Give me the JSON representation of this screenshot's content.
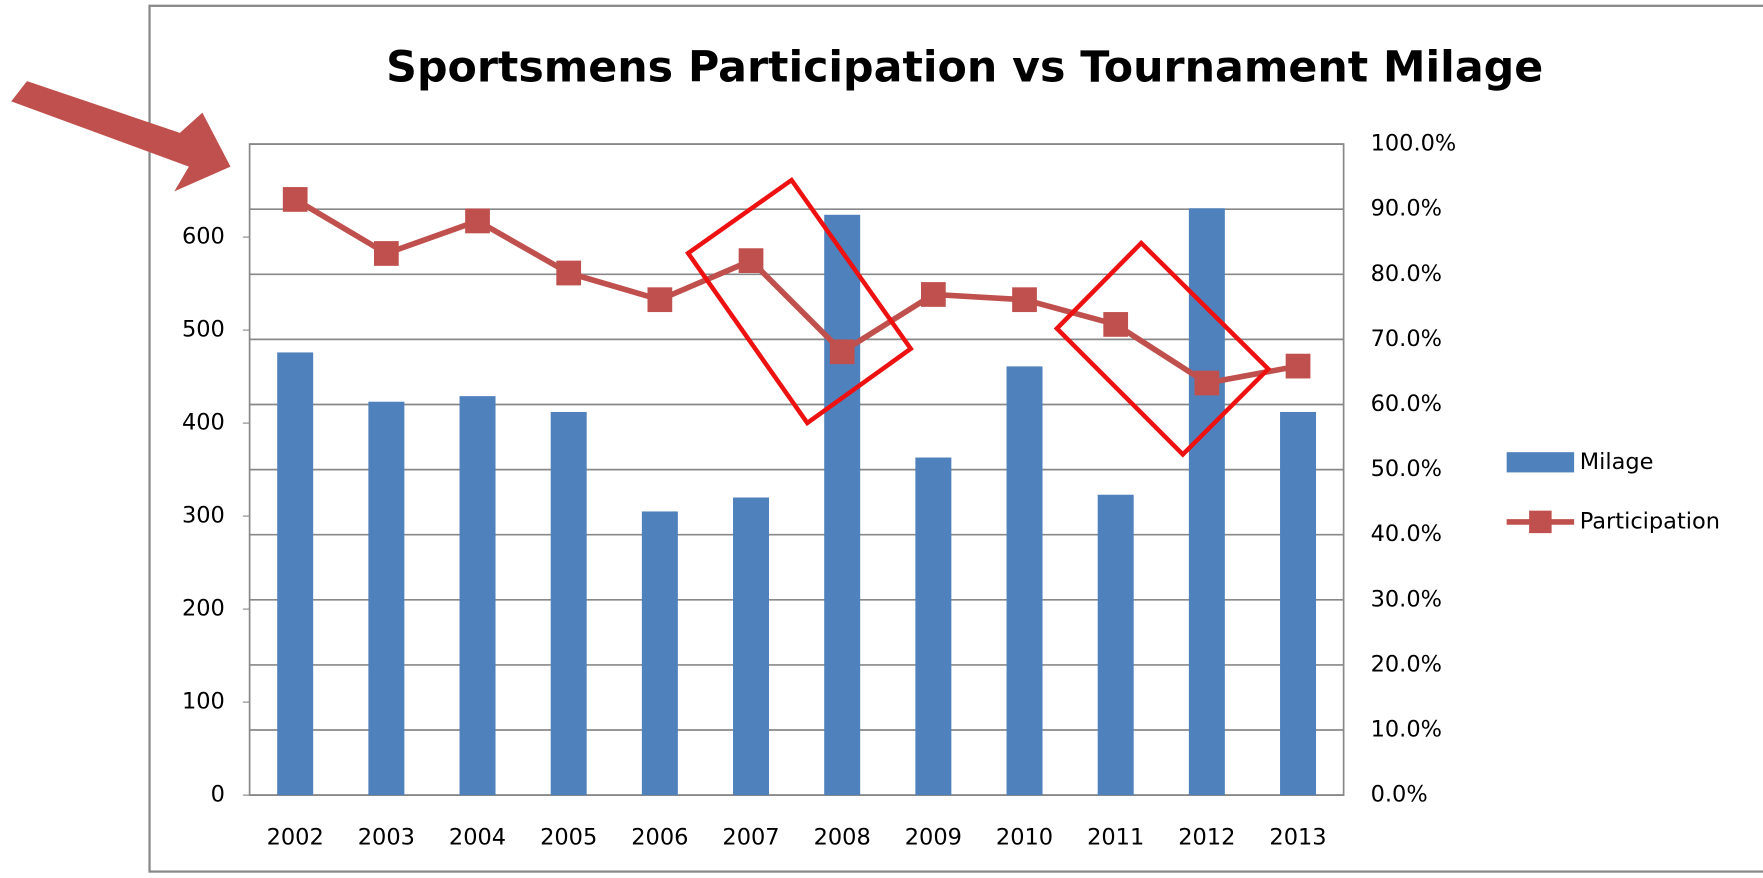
{
  "chart_data": {
    "type": "bar",
    "title": "Sportsmens Participation vs Tournament Milage",
    "categories": [
      "2002",
      "2003",
      "2004",
      "2005",
      "2006",
      "2007",
      "2008",
      "2009",
      "2010",
      "2011",
      "2012",
      "2013"
    ],
    "series": [
      {
        "name": "Milage",
        "type": "bar",
        "color": "#4f81bd",
        "values": [
          476,
          423,
          429,
          412,
          305,
          320,
          624,
          363,
          461,
          323,
          631,
          412
        ]
      },
      {
        "name": "Participation",
        "type": "line",
        "axis": "y2",
        "color": "#c0504d",
        "values": [
          91.5,
          83.2,
          88.2,
          80.2,
          76.1,
          82.1,
          68.1,
          76.9,
          76.1,
          72.3,
          63.3,
          65.9
        ]
      }
    ],
    "ylim": [
      0,
      700
    ],
    "yticks": [
      0,
      100,
      200,
      300,
      400,
      500,
      600
    ],
    "y2lim": [
      0,
      100
    ],
    "y2ticks": [
      {
        "value": 0,
        "label": "0.0%"
      },
      {
        "value": 10,
        "label": "10.0%"
      },
      {
        "value": 20,
        "label": "20.0%"
      },
      {
        "value": 30,
        "label": "30.0%"
      },
      {
        "value": 40,
        "label": "40.0%"
      },
      {
        "value": 50,
        "label": "50.0%"
      },
      {
        "value": 60,
        "label": "60.0%"
      },
      {
        "value": 70,
        "label": "70.0%"
      },
      {
        "value": 80,
        "label": "80.0%"
      },
      {
        "value": 90,
        "label": "90.0%"
      },
      {
        "value": 100,
        "label": "100.0%"
      }
    ],
    "grid": "y2",
    "legend": "right"
  }
}
